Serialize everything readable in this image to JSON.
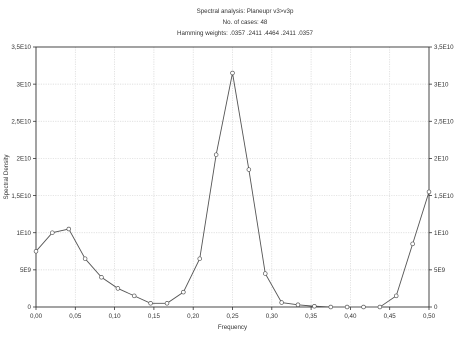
{
  "chart_data": {
    "type": "line",
    "title_lines": [
      "Spectral analysis: Planeupr v3>v3p",
      "No. of cases: 48",
      "Hamming weights: .0357 .2411 .4464 .2411 .0357"
    ],
    "xlabel": "Frequency",
    "ylabel": "Spectral Density",
    "xlim": [
      0,
      0.5
    ],
    "ylim": [
      0,
      35000000000.0
    ],
    "grid": true,
    "x_ticks": [
      {
        "value": 0.0,
        "label": "0,00"
      },
      {
        "value": 0.05,
        "label": "0,05"
      },
      {
        "value": 0.1,
        "label": "0,10"
      },
      {
        "value": 0.15,
        "label": "0,15"
      },
      {
        "value": 0.2,
        "label": "0,20"
      },
      {
        "value": 0.25,
        "label": "0,25"
      },
      {
        "value": 0.3,
        "label": "0,30"
      },
      {
        "value": 0.35,
        "label": "0,35"
      },
      {
        "value": 0.4,
        "label": "0,40"
      },
      {
        "value": 0.45,
        "label": "0,45"
      },
      {
        "value": 0.5,
        "label": "0,50"
      }
    ],
    "y_ticks": [
      {
        "value": 0,
        "label": "0"
      },
      {
        "value": 5000000000.0,
        "label": "5E9"
      },
      {
        "value": 10000000000.0,
        "label": "1E10"
      },
      {
        "value": 15000000000.0,
        "label": "1,5E10"
      },
      {
        "value": 20000000000.0,
        "label": "2E10"
      },
      {
        "value": 25000000000.0,
        "label": "2,5E10"
      },
      {
        "value": 30000000000.0,
        "label": "3E10"
      },
      {
        "value": 35000000000.0,
        "label": "3,5E10"
      }
    ],
    "series": [
      {
        "x": [
          0.0,
          0.0208,
          0.0417,
          0.0625,
          0.0833,
          0.1042,
          0.125,
          0.1458,
          0.1667,
          0.1875,
          0.2083,
          0.2292,
          0.25,
          0.2708,
          0.2917,
          0.3125,
          0.3333,
          0.3542,
          0.375,
          0.3958,
          0.4167,
          0.4375,
          0.4583,
          0.4792,
          0.5
        ],
        "values": [
          7500000000.0,
          10000000000.0,
          10500000000.0,
          6500000000.0,
          4000000000.0,
          2500000000.0,
          1500000000.0,
          500000000.0,
          500000000.0,
          2000000000.0,
          6500000000.0,
          20500000000.0,
          31500000000.0,
          18500000000.0,
          4500000000.0,
          600000000.0,
          300000000.0,
          100000000.0,
          0,
          0,
          0,
          0,
          1500000000.0,
          8500000000.0,
          15500000000.0
        ]
      }
    ]
  },
  "colors": {
    "line": "#555555",
    "grid": "#d6d6d6",
    "frame": "#333333"
  }
}
